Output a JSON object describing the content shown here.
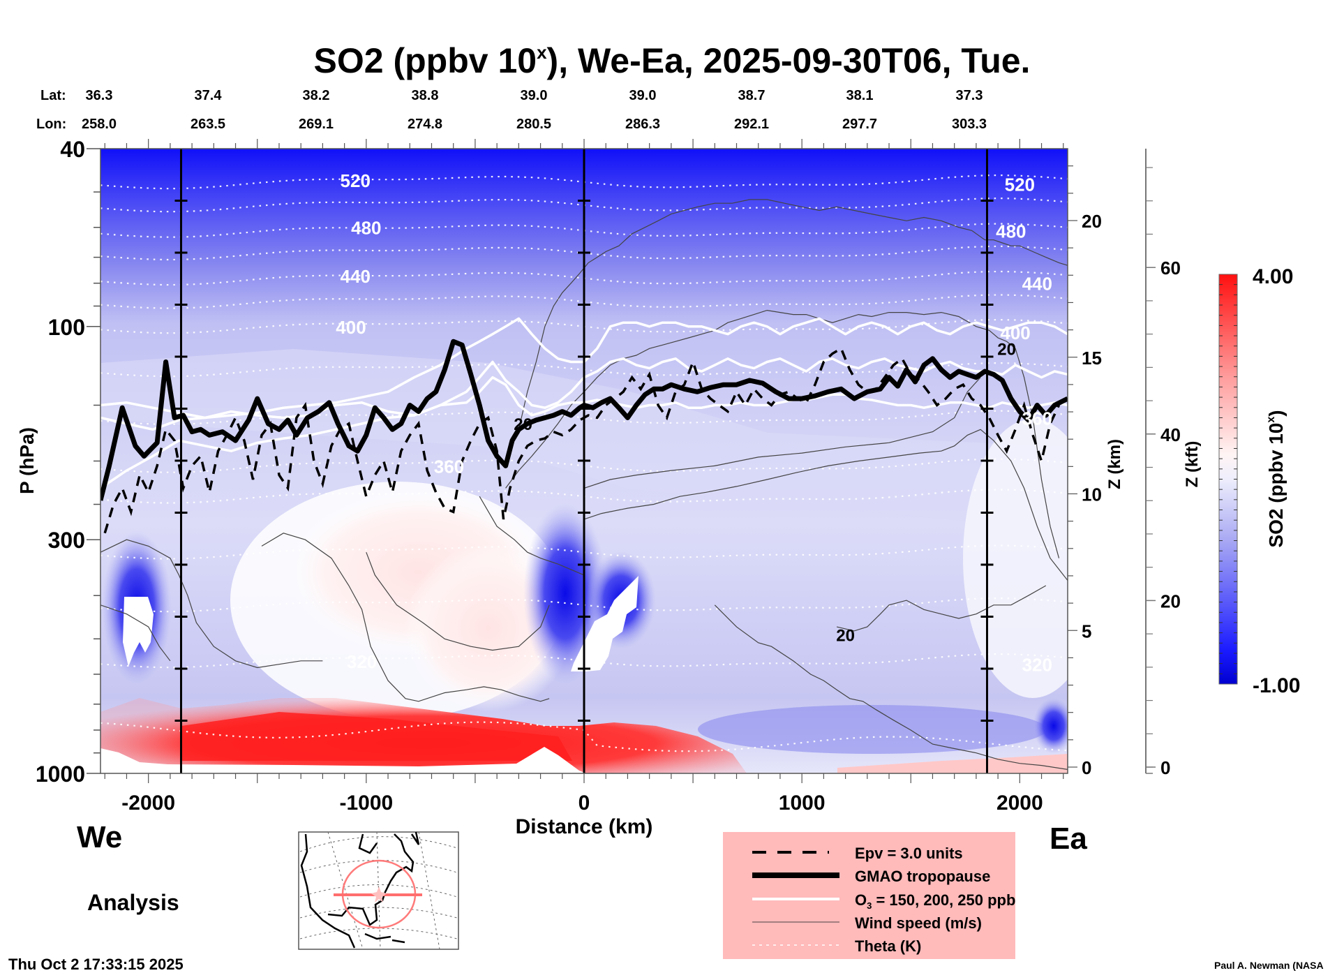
{
  "chart_data": {
    "type": "heatmap",
    "title": "SO2 (ppbv 10",
    "title_superscript": "x",
    "title_suffix": "), We-Ea, 2025-09-30T06, Tue.",
    "xlabel": "Distance (km)",
    "ylabel": "P (hPa)",
    "y2label": "Z (km)",
    "y3label": "Z (kft)",
    "xlim": [
      -2220,
      2220
    ],
    "ylim": [
      1000,
      40
    ],
    "yscale": "log",
    "x_ticks": [
      -2000,
      -1000,
      0,
      1000,
      2000
    ],
    "x_tick_labels": [
      "-2000",
      "-1000",
      "0",
      "1000",
      "2000"
    ],
    "y_ticks": [
      40,
      100,
      300,
      1000
    ],
    "y_tick_labels": [
      "40",
      "100",
      "300",
      "1000"
    ],
    "z_km_ticks": [
      0,
      5,
      10,
      15,
      20
    ],
    "z_kft_ticks": [
      0,
      20,
      40,
      60
    ],
    "vertical_markers_km": [
      -1850,
      0,
      1850
    ],
    "lat_label": "Lat:",
    "lon_label": "Lon:",
    "lat_values": [
      "36.3",
      "37.4",
      "38.2",
      "38.8",
      "39.0",
      "39.0",
      "38.7",
      "38.1",
      "37.3"
    ],
    "lon_values": [
      "258.0",
      "263.5",
      "269.1",
      "274.8",
      "280.5",
      "286.3",
      "292.1",
      "297.7",
      "303.3"
    ],
    "colorbar": {
      "label": "SO2 (ppbv 10",
      "label_superscript": "x",
      "label_suffix": ")",
      "min": -1.0,
      "max": 4.0,
      "min_label": "-1.00",
      "max_label": "4.00",
      "colors": [
        "#0000d8",
        "#ffffff",
        "#ff1010"
      ]
    },
    "theta_contours_K": [
      320,
      360,
      400,
      440,
      480,
      520
    ],
    "theta_labels": [
      {
        "value": "520",
        "x_km": -1050,
        "p": 47
      },
      {
        "value": "520",
        "x_km": 2000,
        "p": 48
      },
      {
        "value": "480",
        "x_km": -1000,
        "p": 60
      },
      {
        "value": "480",
        "x_km": 1960,
        "p": 61
      },
      {
        "value": "440",
        "x_km": -1050,
        "p": 77
      },
      {
        "value": "440",
        "x_km": 2080,
        "p": 80
      },
      {
        "value": "400",
        "x_km": -1070,
        "p": 100
      },
      {
        "value": "400",
        "x_km": 1980,
        "p": 103
      },
      {
        "value": "360",
        "x_km": -620,
        "p": 205
      },
      {
        "value": "360",
        "x_km": 2080,
        "p": 160
      },
      {
        "value": "320",
        "x_km": -1020,
        "p": 560
      },
      {
        "value": "320",
        "x_km": 2080,
        "p": 570
      }
    ],
    "wind_labels": [
      {
        "value": "20",
        "x_km": -280,
        "p": 165
      },
      {
        "value": "20",
        "x_km": 1940,
        "p": 112
      },
      {
        "value": "20",
        "x_km": 1200,
        "p": 490
      }
    ],
    "series": [
      {
        "name": "GMAO tropopause",
        "style": "thick-black",
        "x_km": [
          -2220,
          -2180,
          -2120,
          -2060,
          -2020,
          -1960,
          -1920,
          -1880,
          -1840,
          -1800,
          -1760,
          -1720,
          -1660,
          -1600,
          -1540,
          -1500,
          -1450,
          -1400,
          -1360,
          -1320,
          -1270,
          -1220,
          -1170,
          -1130,
          -1080,
          -1040,
          -1000,
          -960,
          -920,
          -880,
          -840,
          -800,
          -760,
          -720,
          -680,
          -640,
          -600,
          -560,
          -520,
          -480,
          -440,
          -400,
          -360,
          -330,
          -300,
          -260,
          -220,
          -180,
          -140,
          -100,
          -60,
          -20,
          0,
          40,
          80,
          120,
          160,
          200,
          240,
          280,
          320,
          360,
          400,
          460,
          520,
          580,
          640,
          700,
          760,
          820,
          880,
          940,
          1000,
          1060,
          1120,
          1180,
          1240,
          1300,
          1360,
          1400,
          1440,
          1480,
          1520,
          1560,
          1600,
          1640,
          1680,
          1720,
          1760,
          1800,
          1840,
          1880,
          1920,
          1960,
          2000,
          2040,
          2080,
          2120,
          2160,
          2220
        ],
        "p": [
          245,
          205,
          152,
          185,
          195,
          182,
          120,
          160,
          158,
          172,
          170,
          175,
          172,
          180,
          162,
          145,
          165,
          170,
          162,
          175,
          160,
          155,
          148,
          165,
          185,
          190,
          175,
          152,
          160,
          170,
          165,
          150,
          155,
          145,
          140,
          125,
          108,
          110,
          128,
          150,
          180,
          195,
          205,
          180,
          170,
          165,
          162,
          160,
          158,
          155,
          158,
          152,
          150,
          152,
          148,
          145,
          152,
          160,
          150,
          142,
          138,
          138,
          135,
          138,
          140,
          137,
          135,
          135,
          132,
          134,
          140,
          145,
          145,
          143,
          140,
          138,
          145,
          140,
          138,
          130,
          136,
          125,
          133,
          122,
          118,
          125,
          130,
          126,
          128,
          130,
          126,
          128,
          132,
          145,
          155,
          162,
          150,
          158,
          150,
          145
        ]
      },
      {
        "name": "Epv = 3.0 units",
        "style": "dashed-black",
        "x_km": [
          -2200,
          -2160,
          -2120,
          -2080,
          -2040,
          -2000,
          -1960,
          -1920,
          -1880,
          -1840,
          -1800,
          -1760,
          -1720,
          -1680,
          -1640,
          -1600,
          -1560,
          -1520,
          -1480,
          -1440,
          -1400,
          -1360,
          -1320,
          -1280,
          -1240,
          -1200,
          -1160,
          -1120,
          -1080,
          -1040,
          -1000,
          -960,
          -920,
          -880,
          -840,
          -800,
          -760,
          -720,
          -680,
          -640,
          -600,
          -560,
          -520,
          -480,
          -440,
          -400,
          -370,
          -340,
          -300,
          -260,
          -220,
          -180,
          -140,
          -100,
          -60,
          -20,
          20,
          60,
          100,
          140,
          180,
          220,
          260,
          300,
          340,
          380,
          420,
          460,
          500,
          540,
          580,
          620,
          660,
          700,
          740,
          780,
          820,
          860,
          900,
          940,
          980,
          1020,
          1060,
          1100,
          1140,
          1180,
          1220,
          1260,
          1300,
          1340,
          1380,
          1420,
          1460,
          1500,
          1540,
          1580,
          1620,
          1660,
          1700,
          1740,
          1780,
          1820,
          1860,
          1900,
          1940,
          1980,
          2020,
          2060,
          2100,
          2140,
          2180
        ],
        "p": [
          290,
          250,
          230,
          260,
          215,
          235,
          205,
          170,
          180,
          230,
          205,
          195,
          235,
          190,
          175,
          160,
          180,
          220,
          175,
          165,
          215,
          230,
          160,
          150,
          200,
          225,
          185,
          170,
          165,
          200,
          240,
          215,
          200,
          235,
          190,
          175,
          165,
          210,
          235,
          255,
          260,
          200,
          180,
          165,
          160,
          190,
          270,
          230,
          200,
          185,
          180,
          178,
          172,
          175,
          170,
          162,
          158,
          160,
          150,
          145,
          140,
          130,
          138,
          128,
          150,
          160,
          140,
          135,
          120,
          138,
          145,
          150,
          155,
          140,
          150,
          138,
          145,
          150,
          142,
          140,
          145,
          148,
          135,
          120,
          115,
          112,
          125,
          135,
          140,
          138,
          130,
          122,
          118,
          128,
          132,
          140,
          150,
          145,
          138,
          135,
          145,
          150,
          160,
          175,
          190,
          170,
          150,
          175,
          200,
          165,
          150
        ]
      },
      {
        "name": "O3 150 ppb",
        "style": "white",
        "x_km": [
          -2220,
          -2100,
          -1980,
          -1860,
          -1740,
          -1620,
          -1500,
          -1380,
          -1260,
          -1140,
          -1020,
          -900,
          -780,
          -660,
          -540,
          -480,
          -420,
          -360,
          -300,
          -240,
          -180,
          -120,
          -60,
          0,
          60,
          120,
          180,
          240,
          300,
          360,
          420,
          480,
          540,
          600,
          660,
          720,
          780,
          840,
          900,
          960,
          1020,
          1080,
          1140,
          1200,
          1260,
          1320,
          1380,
          1440,
          1500,
          1560,
          1620,
          1680,
          1740,
          1800,
          1860,
          1920,
          1980,
          2040,
          2100,
          2160,
          2220
        ],
        "p": [
          160,
          165,
          170,
          162,
          160,
          155,
          158,
          160,
          158,
          150,
          148,
          155,
          158,
          150,
          148,
          140,
          130,
          135,
          150,
          158,
          155,
          150,
          148,
          148,
          146,
          148,
          150,
          152,
          150,
          150,
          148,
          152,
          152,
          150,
          150,
          148,
          150,
          150,
          148,
          146,
          146,
          144,
          142,
          142,
          145,
          146,
          148,
          150,
          150,
          152,
          150,
          148,
          148,
          150,
          152,
          148,
          150,
          152,
          150,
          148,
          150
        ]
      },
      {
        "name": "O3 200 ppb",
        "style": "white",
        "x_km": [
          -2220,
          -2100,
          -1980,
          -1860,
          -1740,
          -1620,
          -1500,
          -1380,
          -1260,
          -1140,
          -1020,
          -900,
          -780,
          -660,
          -540,
          -480,
          -420,
          -360,
          -300,
          -240,
          -180,
          -120,
          -60,
          0,
          60,
          120,
          180,
          240,
          300,
          360,
          420,
          480,
          540,
          600,
          660,
          720,
          780,
          840,
          900,
          960,
          1020,
          1080,
          1140,
          1200,
          1260,
          1320,
          1380,
          1440,
          1500,
          1560,
          1620,
          1680,
          1740,
          1800,
          1860,
          1920,
          1980,
          2040,
          2100,
          2160,
          2220
        ],
        "p": [
          230,
          210,
          195,
          180,
          185,
          190,
          182,
          178,
          175,
          170,
          165,
          160,
          158,
          150,
          140,
          130,
          120,
          132,
          140,
          150,
          152,
          148,
          140,
          130,
          126,
          120,
          118,
          122,
          124,
          120,
          118,
          124,
          126,
          122,
          118,
          122,
          124,
          120,
          118,
          122,
          126,
          120,
          118,
          122,
          124,
          120,
          118,
          122,
          124,
          126,
          122,
          120,
          124,
          126,
          126,
          128,
          122,
          126,
          130,
          126,
          128
        ]
      },
      {
        "name": "O3 250 ppb",
        "style": "white",
        "x_km": [
          -2220,
          -2100,
          -1980,
          -1860,
          -1740,
          -1620,
          -1500,
          -1380,
          -1260,
          -1140,
          -1020,
          -900,
          -780,
          -660,
          -540,
          -480,
          -420,
          -360,
          -300,
          -240,
          -180,
          -120,
          -60,
          0,
          60,
          120,
          180,
          240,
          300,
          360,
          420,
          480,
          540,
          600,
          660,
          720,
          780,
          840,
          900,
          960,
          1020,
          1080,
          1140,
          1200,
          1260,
          1320,
          1380,
          1440,
          1500,
          1560,
          1620,
          1680,
          1740,
          1800,
          1860,
          1920,
          1980,
          2040,
          2100,
          2160,
          2220
        ],
        "p": [
          150,
          148,
          152,
          156,
          160,
          158,
          156,
          152,
          150,
          148,
          144,
          140,
          130,
          122,
          112,
          108,
          104,
          100,
          96,
          104,
          112,
          118,
          120,
          120,
          112,
          100,
          98,
          98,
          100,
          98,
          98,
          100,
          100,
          102,
          104,
          100,
          98,
          100,
          104,
          100,
          98,
          96,
          100,
          104,
          100,
          98,
          100,
          104,
          100,
          98,
          102,
          104,
          100,
          98,
          100,
          102,
          100,
          98,
          98,
          100,
          104
        ]
      },
      {
        "name": "Wind speed (m/s) 20 contour upper",
        "style": "thin-gray",
        "x_km": [
          -300,
          -260,
          -220,
          -180,
          -140,
          -100,
          -60,
          -20,
          20,
          60,
          100,
          160,
          220,
          280,
          340,
          400,
          460,
          520,
          600,
          680,
          760,
          840,
          920,
          1000,
          1080,
          1160,
          1240,
          1320,
          1400,
          1480,
          1560,
          1640,
          1720,
          1780,
          1840,
          1880,
          1920,
          1960,
          2000,
          2060,
          2120,
          2180,
          2220
        ],
        "p": [
          170,
          140,
          120,
          100,
          90,
          84,
          80,
          76,
          72,
          70,
          68,
          66,
          62,
          60,
          58,
          56,
          55,
          54,
          53,
          53,
          52,
          52,
          53,
          54,
          55,
          54,
          55,
          56,
          57,
          58,
          57,
          58,
          60,
          61,
          64,
          64,
          65,
          66,
          66,
          68,
          70,
          72,
          73
        ]
      },
      {
        "name": "Wind speed (m/s) 20 contour lower",
        "style": "thin-gray",
        "x_km": [
          -360,
          -300,
          -240,
          -180,
          -120,
          -60,
          0,
          60,
          120,
          180,
          240,
          300,
          360,
          420,
          480,
          540,
          600,
          660,
          720,
          780,
          840,
          900,
          960,
          1020,
          1080,
          1140,
          1200,
          1260,
          1320,
          1400,
          1480,
          1560,
          1640,
          1720,
          1800,
          1860,
          1900,
          1940,
          1980,
          2020,
          2060,
          2100,
          2140,
          2180
        ],
        "p": [
          230,
          210,
          195,
          180,
          165,
          150,
          140,
          130,
          122,
          118,
          116,
          112,
          110,
          108,
          106,
          104,
          102,
          98,
          96,
          94,
          92,
          93,
          94,
          94,
          96,
          98,
          96,
          94,
          95,
          93,
          93,
          94,
          93,
          95,
          100,
          102,
          106,
          108,
          112,
          130,
          160,
          220,
          280,
          330
        ]
      }
    ]
  },
  "labels": {
    "we": "We",
    "ea": "Ea",
    "analysis": "Analysis",
    "timestamp": "Thu Oct  2 17:33:15 2025",
    "credit": "Paul A. Newman (NASA"
  },
  "legend": {
    "background": "#ffbaba",
    "items": [
      {
        "label": "Epv = 3.0 units",
        "style": "dashed-black"
      },
      {
        "label": "GMAO tropopause",
        "style": "thick-black"
      },
      {
        "label_prefix": "O",
        "label_sub": "3",
        "label_suffix": " = 150, 200, 250 ppb",
        "style": "white"
      },
      {
        "label": "Wind speed (m/s)",
        "style": "thin-gray"
      },
      {
        "label": "Theta (K)",
        "style": "dotted-white"
      }
    ]
  },
  "inset_map": {
    "region": "North America",
    "marker_color": "#ff6e6e"
  }
}
